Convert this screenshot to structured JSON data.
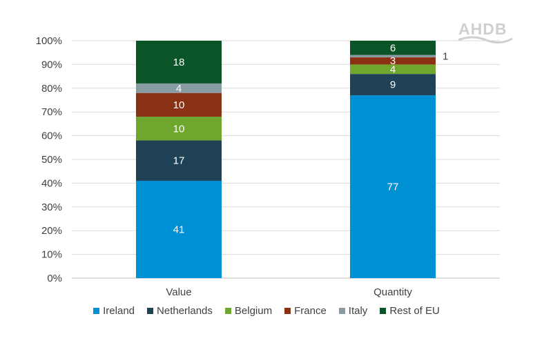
{
  "logo_text": "AHDB",
  "chart_data": {
    "type": "bar",
    "stacked": true,
    "categories": [
      "Value",
      "Quantity"
    ],
    "ylim": [
      0,
      100
    ],
    "yticks": [
      "0%",
      "10%",
      "20%",
      "30%",
      "40%",
      "50%",
      "60%",
      "70%",
      "80%",
      "90%",
      "100%"
    ],
    "grid": true,
    "legend_position": "bottom",
    "series": [
      {
        "name": "Ireland",
        "color": "#0090d4",
        "values": [
          41,
          77
        ],
        "labels": [
          "41",
          "77"
        ]
      },
      {
        "name": "Netherlands",
        "color": "#1f4257",
        "values": [
          17,
          9
        ],
        "labels": [
          "17",
          "9"
        ]
      },
      {
        "name": "Belgium",
        "color": "#6fa62d",
        "values": [
          10,
          4
        ],
        "labels": [
          "10",
          "4"
        ]
      },
      {
        "name": "France",
        "color": "#8b3113",
        "values": [
          10,
          3
        ],
        "labels": [
          "10",
          "3"
        ]
      },
      {
        "name": "Italy",
        "color": "#879ba3",
        "values": [
          4,
          1
        ],
        "labels": [
          "4",
          "1"
        ]
      },
      {
        "name": "Rest of EU",
        "color": "#0b5428",
        "values": [
          18,
          6
        ],
        "labels": [
          "18",
          "6"
        ]
      }
    ]
  }
}
